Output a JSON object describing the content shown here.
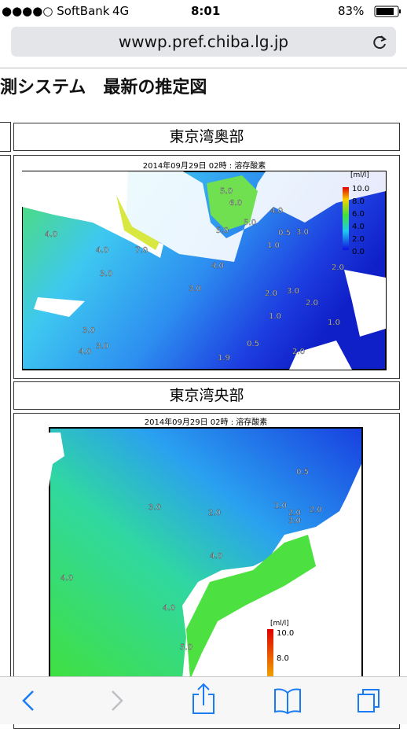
{
  "status": {
    "carrier": "●●●●○ SoftBank",
    "network": "4G",
    "time": "8:01",
    "battery": "83%"
  },
  "url": "wwwp.pref.chiba.lg.jp",
  "heading": "測システム　最新の推定図",
  "panels": [
    {
      "title": "東京湾奥部",
      "map_title": "2014年09月29日 02時 : 溶存酸素",
      "unit": "[ml/l]",
      "legend": [
        "10.0",
        "8.0",
        "6.0",
        "4.0",
        "2.0",
        "0.0"
      ],
      "contour_labels": [
        "5.0",
        "6.0",
        "4.0",
        "5.0",
        "4.0",
        "5.0",
        "0.5",
        "3.0",
        "4.0",
        "7.0",
        "1.0",
        "4.0",
        "3.0",
        "3.0",
        "2.0",
        "3.0",
        "2.0",
        "1.0",
        "2.0",
        "3.0",
        "4.0",
        "3.0",
        "0.5",
        "1.9",
        "2.0",
        "1.0"
      ]
    },
    {
      "title": "東京湾央部",
      "map_title": "2014年09月29日 02時 : 溶存酸素",
      "unit": "[ml/l]",
      "legend": [
        "10.0",
        "8.0"
      ],
      "contour_labels": [
        "0.5",
        "3.0",
        "2.0",
        "1.0",
        "2.0",
        "3.0",
        "2.0",
        "4.0",
        "4.0",
        "4.0",
        "5.0"
      ]
    }
  ]
}
